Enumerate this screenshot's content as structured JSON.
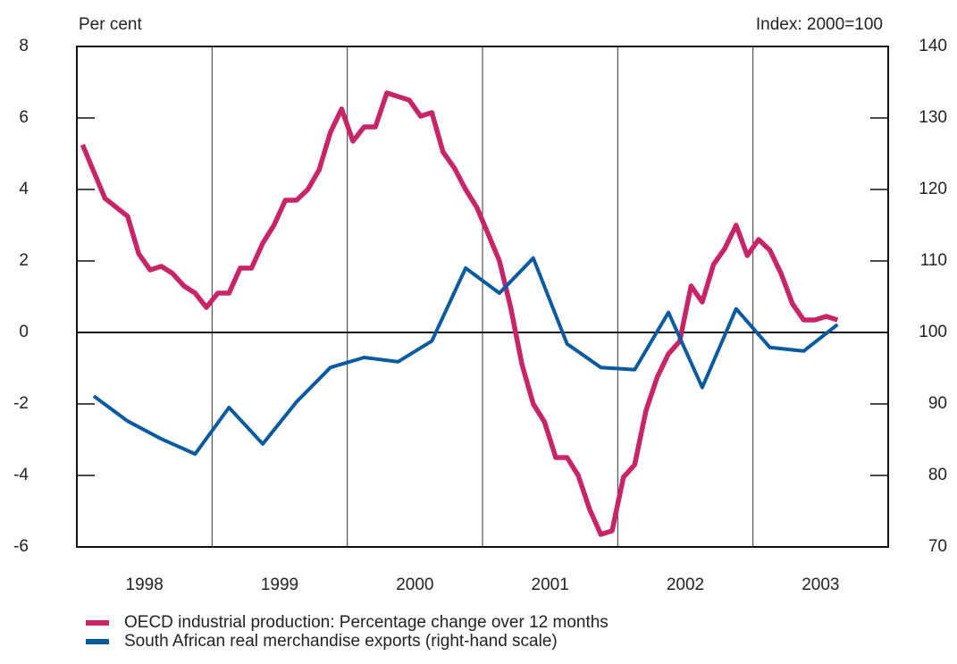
{
  "chart_data": {
    "type": "line",
    "y_axis_label": "Per cent",
    "y2_axis_label": "Index: 2000=100",
    "xlim": [
      1998,
      2004
    ],
    "xticks": [
      {
        "value": 1998.5,
        "label": "1998"
      },
      {
        "value": 1999.5,
        "label": "1999"
      },
      {
        "value": 2000.5,
        "label": "2000"
      },
      {
        "value": 2001.5,
        "label": "2001"
      },
      {
        "value": 2002.5,
        "label": "2002"
      },
      {
        "value": 2003.5,
        "label": "2003"
      }
    ],
    "xgrid": [
      1999,
      2000,
      2001,
      2002,
      2003
    ],
    "ylim": [
      -6,
      8
    ],
    "yticks": [
      -6,
      -4,
      -2,
      0,
      2,
      4,
      6,
      8
    ],
    "y2lim": [
      70,
      140
    ],
    "y2ticks": [
      70,
      80,
      90,
      100,
      110,
      120,
      130,
      140
    ],
    "legend": "bottom",
    "series": [
      {
        "name": "OECD industrial production: Percentage change over 12 months",
        "color": "#c8246a",
        "axis": "y",
        "x": [
          1998.042,
          1998.125,
          1998.208,
          1998.292,
          1998.375,
          1998.458,
          1998.542,
          1998.625,
          1998.708,
          1998.792,
          1998.875,
          1998.958,
          1999.042,
          1999.125,
          1999.208,
          1999.292,
          1999.375,
          1999.458,
          1999.542,
          1999.625,
          1999.708,
          1999.792,
          1999.875,
          1999.958,
          2000.042,
          2000.125,
          2000.208,
          2000.292,
          2000.375,
          2000.458,
          2000.542,
          2000.625,
          2000.708,
          2000.792,
          2000.875,
          2000.958,
          2001.042,
          2001.125,
          2001.208,
          2001.292,
          2001.375,
          2001.458,
          2001.542,
          2001.625,
          2001.708,
          2001.792,
          2001.875,
          2001.958,
          2002.042,
          2002.125,
          2002.208,
          2002.292,
          2002.375,
          2002.458,
          2002.542,
          2002.625,
          2002.708,
          2002.792,
          2002.875,
          2002.958,
          2003.042,
          2003.125,
          2003.208,
          2003.292,
          2003.375,
          2003.458,
          2003.542,
          2003.625
        ],
        "values": [
          5.25,
          4.5,
          3.75,
          3.5,
          3.25,
          2.2,
          1.75,
          1.85,
          1.65,
          1.3,
          1.1,
          0.7,
          1.1,
          1.1,
          1.8,
          1.8,
          2.5,
          3.0,
          3.7,
          3.7,
          4.0,
          4.55,
          5.6,
          6.25,
          5.35,
          5.75,
          5.75,
          6.7,
          6.6,
          6.5,
          6.05,
          6.15,
          5.05,
          4.6,
          4.0,
          3.5,
          2.75,
          2.0,
          0.7,
          -0.9,
          -2.0,
          -2.5,
          -3.5,
          -3.5,
          -4.0,
          -4.95,
          -5.65,
          -5.55,
          -4.05,
          -3.7,
          -2.2,
          -1.25,
          -0.6,
          -0.25,
          1.3,
          0.85,
          1.9,
          2.35,
          3.0,
          2.15,
          2.6,
          2.3,
          1.65,
          0.8,
          0.35,
          0.35,
          0.45,
          0.35
        ]
      },
      {
        "name": "South African real merchandise exports (right-hand scale)",
        "color": "#0a5aa0",
        "axis": "y2",
        "x": [
          1998.125,
          1998.375,
          1998.625,
          1998.875,
          1999.125,
          1999.375,
          1999.625,
          1999.875,
          2000.125,
          2000.375,
          2000.625,
          2000.875,
          2001.125,
          2001.375,
          2001.625,
          2001.875,
          2002.125,
          2002.375,
          2002.625,
          2002.875,
          2003.125,
          2003.375,
          2003.625
        ],
        "values": [
          91.1,
          87.6,
          85.1,
          83.0,
          89.5,
          84.4,
          90.3,
          95.1,
          96.5,
          95.9,
          98.8,
          109.0,
          105.5,
          110.4,
          98.4,
          95.1,
          94.8,
          102.8,
          92.3,
          103.3,
          97.9,
          97.4,
          101.1
        ]
      }
    ]
  }
}
